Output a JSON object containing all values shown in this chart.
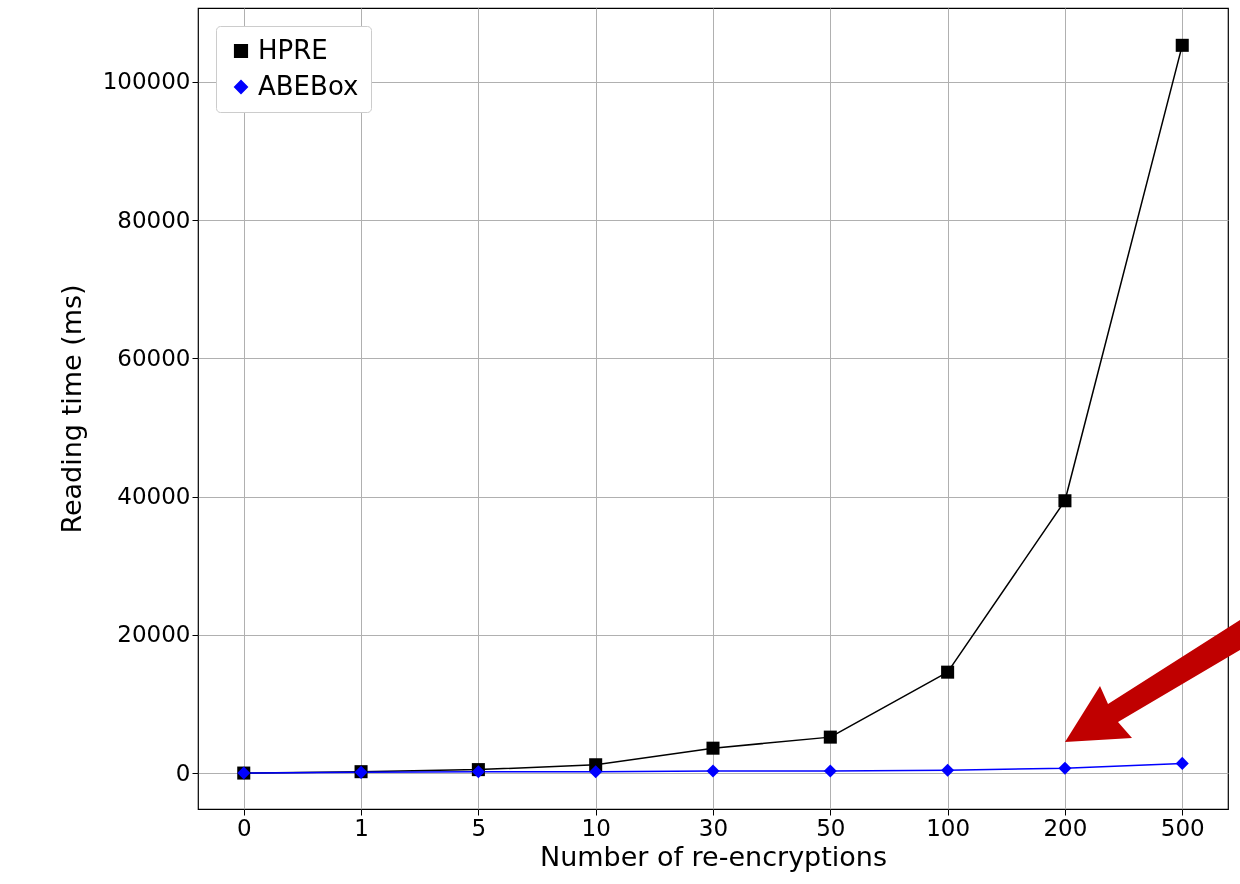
{
  "chart_data": {
    "type": "line",
    "xlabel": "Number of re-encryptions",
    "ylabel": "Reading time (ms)",
    "categories": [
      "0",
      "1",
      "5",
      "10",
      "30",
      "50",
      "100",
      "200",
      "500"
    ],
    "series": [
      {
        "name": "HPRE",
        "color": "#000000",
        "marker": "square",
        "values": [
          0,
          200,
          500,
          1200,
          3600,
          5200,
          14600,
          39400,
          105300
        ]
      },
      {
        "name": "ABEBox",
        "color": "#0000ff",
        "marker": "diamond",
        "values": [
          0,
          100,
          200,
          200,
          300,
          300,
          400,
          700,
          1400
        ]
      }
    ],
    "ylim": [
      -5200,
      110700
    ],
    "yticks": [
      0,
      20000,
      40000,
      60000,
      80000,
      100000
    ],
    "grid": true,
    "legend": "top left",
    "line_style": "solid"
  }
}
